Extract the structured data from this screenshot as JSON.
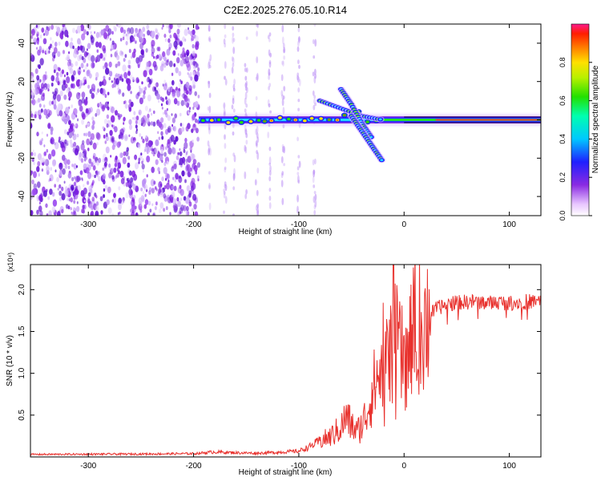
{
  "figure": {
    "title": "C2E2.2025.276.05.10.R14"
  },
  "colors": {
    "snr_line": "#e8302c",
    "tone_core": "#e8302c",
    "noise": "#7a1fe0"
  },
  "chart_data": [
    {
      "type": "heatmap",
      "title": "C2E2.2025.276.05.10.R14",
      "xlabel": "Height of straight line (km)",
      "ylabel": "Frequency (Hz)",
      "xlim": [
        -355,
        130
      ],
      "ylim": [
        -50,
        50
      ],
      "x_ticks": [
        -300,
        -200,
        -100,
        0,
        100
      ],
      "x_tick_labels": [
        "-300",
        "-200",
        "-100",
        "0",
        "100"
      ],
      "y_ticks": [
        -40,
        -20,
        0,
        20,
        40
      ],
      "y_tick_labels": [
        "-40",
        "-20",
        "0",
        "20",
        "40"
      ],
      "colorbar": {
        "label": "Normalized spectral amplitude",
        "range": [
          0,
          1
        ],
        "ticks": [
          0.0,
          0.2,
          0.4,
          0.6,
          0.8
        ],
        "tick_labels": [
          "0.0",
          "0.2",
          "0.4",
          "0.6",
          "0.8"
        ]
      },
      "features": {
        "noise_region_x": [
          -355,
          -195
        ],
        "tone_start_x": -195,
        "tone_freq_hz": 0,
        "branches": [
          {
            "x": [
              -80,
              -60,
              -40,
              -20
            ],
            "freq": [
              10,
              6,
              2,
              0
            ]
          },
          {
            "x": [
              -60,
              -50,
              -40,
              -30
            ],
            "freq": [
              16,
              8,
              -2,
              -10
            ]
          },
          {
            "x": [
              -50,
              -40,
              -30,
              -20
            ],
            "freq": [
              2,
              -6,
              -14,
              -22
            ]
          }
        ]
      }
    },
    {
      "type": "line",
      "xlabel": "Height of straight line (km)",
      "ylabel": "SNR (10 * v/v)",
      "y_scale_label": "(x10⁴)",
      "xlim": [
        -355,
        130
      ],
      "ylim": [
        0,
        23000
      ],
      "x_ticks": [
        -300,
        -200,
        -100,
        0,
        100
      ],
      "x_tick_labels": [
        "-300",
        "-200",
        "-100",
        "0",
        "100"
      ],
      "y_ticks": [
        5000,
        10000,
        15000,
        20000
      ],
      "y_tick_labels": [
        "0.5",
        "1.0",
        "1.5",
        "2.0"
      ],
      "series": [
        {
          "x": [
            -355,
            -250,
            -200,
            -180,
            -160,
            -140,
            -120,
            -100,
            -90,
            -80,
            -70,
            -60,
            -55,
            -50,
            -45,
            -40,
            -35,
            -30,
            -25,
            -20,
            -15,
            -10,
            -5,
            0,
            5,
            10,
            15,
            20,
            25,
            30,
            40,
            50,
            60,
            70,
            80,
            90,
            100,
            110,
            120,
            130
          ],
          "y": [
            300,
            350,
            400,
            600,
            500,
            450,
            550,
            700,
            1200,
            1900,
            2400,
            3500,
            4800,
            3800,
            3000,
            3800,
            5500,
            8000,
            9500,
            10500,
            12000,
            14000,
            13000,
            11000,
            13500,
            15000,
            16000,
            16300,
            17000,
            17700,
            18200,
            18500,
            18500,
            18600,
            18400,
            18500,
            18400,
            18500,
            18600,
            18600
          ]
        }
      ]
    }
  ]
}
